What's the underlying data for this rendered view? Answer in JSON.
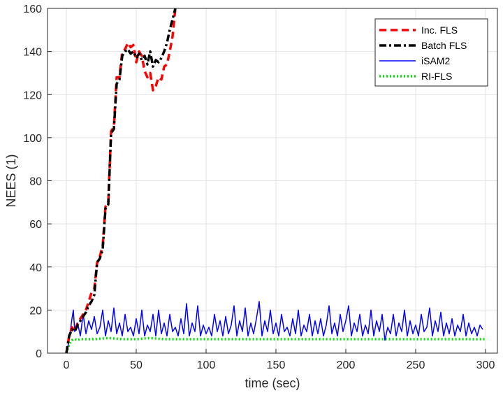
{
  "chart_data": {
    "type": "line",
    "title": "",
    "xlabel": "time (sec)",
    "ylabel": "NEES (1)",
    "xlim": [
      0,
      300
    ],
    "ylim": [
      0,
      160
    ],
    "xticks": [
      0,
      50,
      100,
      150,
      200,
      250,
      300
    ],
    "yticks": [
      0,
      20,
      40,
      60,
      80,
      100,
      120,
      140,
      160
    ],
    "grid": true,
    "legend_position": "top-right",
    "series": [
      {
        "name": "Inc. FLS",
        "color": "#ff0000",
        "style": "dashed",
        "x": [
          0,
          2,
          4,
          6,
          8,
          10,
          12,
          14,
          16,
          18,
          20,
          22,
          24,
          26,
          28,
          30,
          32,
          34,
          36,
          38,
          40,
          42,
          44,
          46,
          48,
          50,
          52,
          54,
          56,
          58,
          60,
          62,
          64,
          66,
          68,
          70,
          72,
          74,
          76,
          78
        ],
        "values": [
          0,
          8,
          12,
          10,
          14,
          16,
          18,
          20,
          24,
          28,
          30,
          42,
          45,
          50,
          68,
          70,
          103,
          105,
          128,
          128,
          140,
          141,
          144,
          142,
          143,
          135,
          140,
          138,
          131,
          128,
          130,
          122,
          124,
          128,
          127,
          133,
          134,
          140,
          147,
          160
        ]
      },
      {
        "name": "Batch FLS",
        "color": "#000000",
        "style": "dashdot",
        "x": [
          0,
          2,
          4,
          6,
          8,
          10,
          12,
          14,
          16,
          18,
          20,
          22,
          24,
          26,
          28,
          30,
          32,
          34,
          36,
          38,
          40,
          42,
          44,
          46,
          48,
          50,
          52,
          54,
          56,
          58,
          60,
          62,
          64,
          66,
          68,
          70,
          72,
          74,
          76,
          78
        ],
        "values": [
          0,
          8,
          11,
          10,
          13,
          15,
          17,
          19,
          22,
          24,
          27,
          42,
          44,
          48,
          67,
          69,
          102,
          104,
          125,
          127,
          138,
          140,
          141,
          139,
          140,
          137,
          139,
          136,
          138,
          134,
          140,
          133,
          136,
          135,
          137,
          140,
          144,
          150,
          155,
          160
        ]
      },
      {
        "name": "iSAM2",
        "color": "#0000ff",
        "style": "solid",
        "x": [
          0,
          2,
          4,
          5,
          6,
          8,
          10,
          12,
          14,
          16,
          18,
          20,
          22,
          24,
          26,
          28,
          30,
          32,
          34,
          36,
          38,
          40,
          42,
          44,
          46,
          48,
          50,
          52,
          54,
          56,
          58,
          60,
          62,
          64,
          66,
          68,
          70,
          72,
          74,
          76,
          78,
          80,
          82,
          84,
          86,
          88,
          90,
          92,
          94,
          96,
          98,
          100,
          102,
          104,
          106,
          108,
          110,
          112,
          114,
          116,
          118,
          120,
          122,
          124,
          126,
          128,
          130,
          132,
          134,
          136,
          138,
          140,
          142,
          144,
          146,
          148,
          150,
          152,
          154,
          156,
          158,
          160,
          162,
          164,
          166,
          168,
          170,
          172,
          174,
          176,
          178,
          180,
          182,
          184,
          186,
          188,
          190,
          192,
          194,
          196,
          198,
          200,
          202,
          204,
          206,
          208,
          210,
          212,
          214,
          216,
          218,
          220,
          222,
          224,
          226,
          228,
          230,
          232,
          234,
          236,
          238,
          240,
          242,
          244,
          246,
          248,
          250,
          252,
          254,
          256,
          258,
          260,
          262,
          264,
          266,
          268,
          270,
          272,
          274,
          276,
          278,
          280,
          282,
          284,
          286,
          288,
          290,
          292,
          294,
          296,
          298
        ],
        "values": [
          0,
          6,
          16,
          20,
          10,
          14,
          8,
          18,
          9,
          15,
          11,
          17,
          9,
          12,
          20,
          8,
          15,
          10,
          21,
          9,
          14,
          8,
          18,
          10,
          12,
          8,
          16,
          9,
          20,
          8,
          13,
          10,
          18,
          8,
          20,
          9,
          14,
          8,
          18,
          10,
          12,
          8,
          16,
          9,
          23,
          8,
          14,
          10,
          22,
          8,
          13,
          9,
          12,
          8,
          18,
          10,
          15,
          8,
          17,
          9,
          13,
          22,
          8,
          15,
          10,
          21,
          8,
          14,
          9,
          16,
          24,
          8,
          15,
          10,
          20,
          9,
          14,
          8,
          18,
          10,
          12,
          8,
          16,
          9,
          20,
          8,
          13,
          10,
          18,
          8,
          15,
          9,
          16,
          8,
          13,
          22,
          9,
          14,
          8,
          18,
          10,
          15,
          22,
          8,
          14,
          10,
          18,
          8,
          13,
          9,
          20,
          8,
          15,
          10,
          18,
          6,
          12,
          9,
          18,
          8,
          14,
          10,
          20,
          8,
          15,
          9,
          13,
          8,
          18,
          10,
          12,
          21,
          8,
          15,
          10,
          19,
          8,
          14,
          9,
          16,
          8,
          13,
          10,
          18,
          8,
          14,
          9,
          12,
          8,
          13,
          11
        ]
      },
      {
        "name": "RI-FLS",
        "color": "#00e000",
        "style": "dotted",
        "x": [
          0,
          2,
          4,
          6,
          8,
          10,
          20,
          30,
          40,
          50,
          60,
          70,
          80,
          100,
          120,
          140,
          160,
          180,
          200,
          220,
          240,
          260,
          280,
          300
        ],
        "values": [
          0,
          4,
          6,
          6.5,
          6,
          6.5,
          6.5,
          7,
          6.5,
          6.5,
          7,
          6.5,
          6.5,
          6.5,
          6.5,
          6.5,
          6.5,
          6.5,
          6.5,
          6.5,
          6.5,
          6.5,
          6.5,
          6.5
        ]
      }
    ]
  }
}
